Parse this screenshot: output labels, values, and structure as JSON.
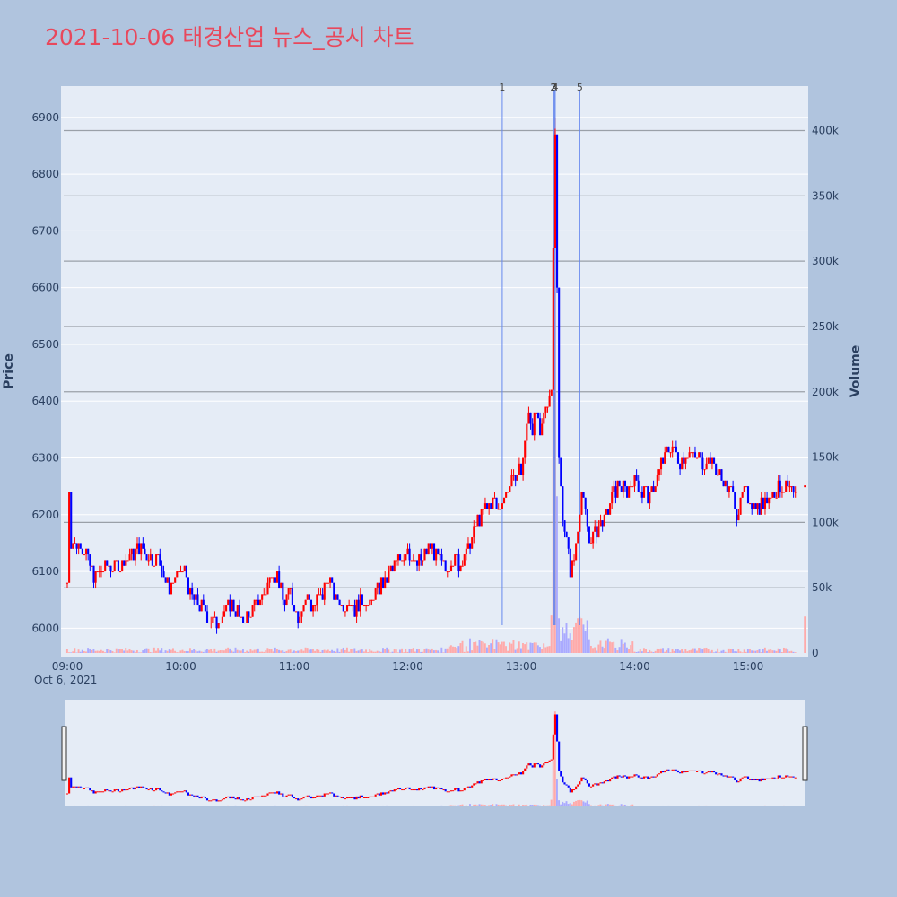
{
  "chart_data": {
    "type": "candlestick",
    "title": "2021-10-06 태경산업 뉴스_공시 차트",
    "y_axis_title": "Price",
    "y2_axis_title": "Volume",
    "x_tick_labels": [
      "09:00",
      "10:00",
      "11:00",
      "12:00",
      "13:00",
      "14:00",
      "15:00"
    ],
    "x_date_label": "Oct 6, 2021",
    "x_range_minutes": [
      0,
      390
    ],
    "y_ticks": [
      6000,
      6100,
      6200,
      6300,
      6400,
      6500,
      6600,
      6700,
      6800,
      6900
    ],
    "ylim": [
      5950,
      6955
    ],
    "y2_ticks": [
      {
        "value": 0,
        "label": "0"
      },
      {
        "value": 50000,
        "label": "50k"
      },
      {
        "value": 100000,
        "label": "100k"
      },
      {
        "value": 150000,
        "label": "150k"
      },
      {
        "value": 200000,
        "label": "200k"
      },
      {
        "value": 250000,
        "label": "250k"
      },
      {
        "value": 300000,
        "label": "300k"
      },
      {
        "value": 350000,
        "label": "350k"
      },
      {
        "value": 400000,
        "label": "400k"
      }
    ],
    "y2lim": [
      0,
      434000
    ],
    "news_markers": [
      {
        "label": "1",
        "minute": 230
      },
      {
        "label": "2",
        "minute": 257
      },
      {
        "label": "3",
        "minute": 257.5
      },
      {
        "label": "4",
        "minute": 258
      },
      {
        "label": "5",
        "minute": 271
      }
    ],
    "colors": {
      "up": "#ff0000",
      "down": "#0000ff",
      "volume_up": "#ffaaaa",
      "volume_down": "#aaaaff",
      "marker_line": "#6688ee",
      "title": "#e8485c"
    },
    "price_path": [
      [
        0,
        6080
      ],
      [
        1,
        6250
      ],
      [
        2,
        6150
      ],
      [
        6,
        6150
      ],
      [
        8,
        6140
      ],
      [
        10,
        6130
      ],
      [
        12,
        6110
      ],
      [
        14,
        6090
      ],
      [
        18,
        6100
      ],
      [
        22,
        6110
      ],
      [
        28,
        6110
      ],
      [
        34,
        6130
      ],
      [
        38,
        6140
      ],
      [
        42,
        6130
      ],
      [
        46,
        6120
      ],
      [
        50,
        6110
      ],
      [
        52,
        6080
      ],
      [
        54,
        6070
      ],
      [
        58,
        6090
      ],
      [
        62,
        6100
      ],
      [
        64,
        6070
      ],
      [
        66,
        6050
      ],
      [
        70,
        6040
      ],
      [
        74,
        6020
      ],
      [
        78,
        6010
      ],
      [
        82,
        6020
      ],
      [
        86,
        6040
      ],
      [
        90,
        6030
      ],
      [
        92,
        6010
      ],
      [
        96,
        6020
      ],
      [
        100,
        6040
      ],
      [
        104,
        6060
      ],
      [
        108,
        6100
      ],
      [
        112,
        6080
      ],
      [
        114,
        6050
      ],
      [
        118,
        6060
      ],
      [
        120,
        6040
      ],
      [
        122,
        6020
      ],
      [
        126,
        6050
      ],
      [
        130,
        6040
      ],
      [
        134,
        6050
      ],
      [
        138,
        6090
      ],
      [
        142,
        6050
      ],
      [
        146,
        6040
      ],
      [
        150,
        6050
      ],
      [
        152,
        6030
      ],
      [
        156,
        6050
      ],
      [
        160,
        6040
      ],
      [
        164,
        6070
      ],
      [
        168,
        6080
      ],
      [
        172,
        6100
      ],
      [
        176,
        6120
      ],
      [
        180,
        6140
      ],
      [
        184,
        6110
      ],
      [
        188,
        6120
      ],
      [
        192,
        6140
      ],
      [
        196,
        6120
      ],
      [
        200,
        6100
      ],
      [
        204,
        6120
      ],
      [
        208,
        6110
      ],
      [
        212,
        6140
      ],
      [
        214,
        6160
      ],
      [
        216,
        6180
      ],
      [
        220,
        6200
      ],
      [
        224,
        6220
      ],
      [
        228,
        6210
      ],
      [
        232,
        6240
      ],
      [
        236,
        6260
      ],
      [
        240,
        6280
      ],
      [
        242,
        6320
      ],
      [
        244,
        6390
      ],
      [
        246,
        6350
      ],
      [
        248,
        6380
      ],
      [
        250,
        6330
      ],
      [
        252,
        6370
      ],
      [
        254,
        6400
      ],
      [
        256,
        6420
      ],
      [
        257,
        6680
      ],
      [
        258,
        6880
      ],
      [
        259,
        6600
      ],
      [
        260,
        6300
      ],
      [
        262,
        6200
      ],
      [
        264,
        6150
      ],
      [
        266,
        6100
      ],
      [
        268,
        6120
      ],
      [
        270,
        6180
      ],
      [
        272,
        6240
      ],
      [
        274,
        6200
      ],
      [
        276,
        6150
      ],
      [
        280,
        6170
      ],
      [
        284,
        6190
      ],
      [
        288,
        6230
      ],
      [
        292,
        6250
      ],
      [
        296,
        6240
      ],
      [
        300,
        6260
      ],
      [
        304,
        6240
      ],
      [
        308,
        6230
      ],
      [
        312,
        6270
      ],
      [
        316,
        6300
      ],
      [
        320,
        6320
      ],
      [
        324,
        6290
      ],
      [
        328,
        6310
      ],
      [
        332,
        6300
      ],
      [
        336,
        6290
      ],
      [
        340,
        6300
      ],
      [
        344,
        6270
      ],
      [
        348,
        6250
      ],
      [
        352,
        6230
      ],
      [
        354,
        6200
      ],
      [
        358,
        6240
      ],
      [
        362,
        6220
      ],
      [
        366,
        6210
      ],
      [
        370,
        6230
      ],
      [
        374,
        6240
      ],
      [
        378,
        6250
      ],
      [
        382,
        6240
      ],
      [
        385,
        6230
      ]
    ]
  }
}
